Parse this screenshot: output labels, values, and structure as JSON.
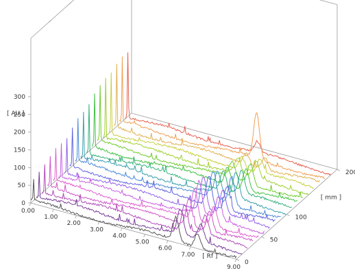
{
  "chart_data": {
    "type": "line",
    "chart_kind": "3d-waterfall",
    "z_axis": {
      "label": "[ AU ]",
      "ticks": [
        "0",
        "50",
        "100",
        "150",
        "200",
        "250",
        "300"
      ],
      "range": [
        0,
        300
      ]
    },
    "x_axis": {
      "label": "[ Rf ]",
      "ticks": [
        "0.00",
        "1.00",
        "2.00",
        "3.00",
        "4.00",
        "5.00",
        "6.00",
        "7.00",
        "9.00"
      ],
      "range": [
        0,
        9
      ]
    },
    "y_axis": {
      "label": "[ mm ]",
      "ticks": [
        "0",
        "50",
        "100",
        "200"
      ],
      "range": [
        0,
        200
      ]
    },
    "grid": false,
    "legend": "none",
    "series": [
      {
        "track_mm": 0,
        "color": "#555555",
        "start_peak": 60,
        "features": [
          {
            "rf": 6.35,
            "h": 65
          },
          {
            "rf": 7.3,
            "h": 40
          }
        ]
      },
      {
        "track_mm": 11,
        "color": "#7a3f9a",
        "start_peak": 70,
        "features": [
          {
            "rf": 6.3,
            "h": 70
          },
          {
            "rf": 7.2,
            "h": 45
          }
        ]
      },
      {
        "track_mm": 22,
        "color": "#b04ab8",
        "start_peak": 80,
        "features": [
          {
            "rf": 6.25,
            "h": 75
          },
          {
            "rf": 7.15,
            "h": 55
          }
        ]
      },
      {
        "track_mm": 33,
        "color": "#d055c8",
        "start_peak": 85,
        "features": [
          {
            "rf": 6.2,
            "h": 80
          },
          {
            "rf": 7.1,
            "h": 60
          }
        ]
      },
      {
        "track_mm": 44,
        "color": "#e060d0",
        "start_peak": 90,
        "features": [
          {
            "rf": 6.2,
            "h": 85
          },
          {
            "rf": 7.05,
            "h": 55
          }
        ]
      },
      {
        "track_mm": 55,
        "color": "#c860e0",
        "start_peak": 95,
        "features": [
          {
            "rf": 6.15,
            "h": 90
          },
          {
            "rf": 7.0,
            "h": 60
          }
        ]
      },
      {
        "track_mm": 66,
        "color": "#9060e8",
        "start_peak": 100,
        "features": [
          {
            "rf": 6.1,
            "h": 95
          },
          {
            "rf": 6.95,
            "h": 65
          }
        ]
      },
      {
        "track_mm": 77,
        "color": "#5f63e0",
        "start_peak": 110,
        "features": [
          {
            "rf": 6.1,
            "h": 85
          },
          {
            "rf": 6.9,
            "h": 70
          }
        ]
      },
      {
        "track_mm": 88,
        "color": "#4a8ad8",
        "start_peak": 120,
        "features": [
          {
            "rf": 6.05,
            "h": 75
          },
          {
            "rf": 6.85,
            "h": 80
          }
        ]
      },
      {
        "track_mm": 99,
        "color": "#3aa0b0",
        "start_peak": 130,
        "features": [
          {
            "rf": 6.0,
            "h": 60
          },
          {
            "rf": 6.8,
            "h": 70
          }
        ]
      },
      {
        "track_mm": 110,
        "color": "#34b07a",
        "start_peak": 140,
        "features": [
          {
            "rf": 6.0,
            "h": 55
          },
          {
            "rf": 6.8,
            "h": 65
          }
        ]
      },
      {
        "track_mm": 121,
        "color": "#40c040",
        "start_peak": 150,
        "features": [
          {
            "rf": 5.95,
            "h": 50
          },
          {
            "rf": 6.75,
            "h": 60
          }
        ]
      },
      {
        "track_mm": 132,
        "color": "#70cc30",
        "start_peak": 160,
        "features": [
          {
            "rf": 5.9,
            "h": 45
          },
          {
            "rf": 6.7,
            "h": 55
          }
        ]
      },
      {
        "track_mm": 143,
        "color": "#a0d030",
        "start_peak": 170,
        "features": [
          {
            "rf": 5.9,
            "h": 40
          },
          {
            "rf": 6.7,
            "h": 45
          }
        ]
      },
      {
        "track_mm": 154,
        "color": "#c8d040",
        "start_peak": 175,
        "features": [
          {
            "rf": 5.85,
            "h": 35
          },
          {
            "rf": 6.65,
            "h": 40
          }
        ]
      },
      {
        "track_mm": 165,
        "color": "#e0b050",
        "start_peak": 180,
        "features": [
          {
            "rf": 5.8,
            "h": 30
          },
          {
            "rf": 6.6,
            "h": 35
          }
        ]
      },
      {
        "track_mm": 176,
        "color": "#f0a050",
        "start_peak": 185,
        "features": [
          {
            "rf": 6.0,
            "h": 130
          }
        ]
      },
      {
        "track_mm": 187,
        "color": "#e86050",
        "start_peak": 190,
        "features": [
          {
            "rf": 5.8,
            "h": 30
          }
        ]
      }
    ]
  }
}
